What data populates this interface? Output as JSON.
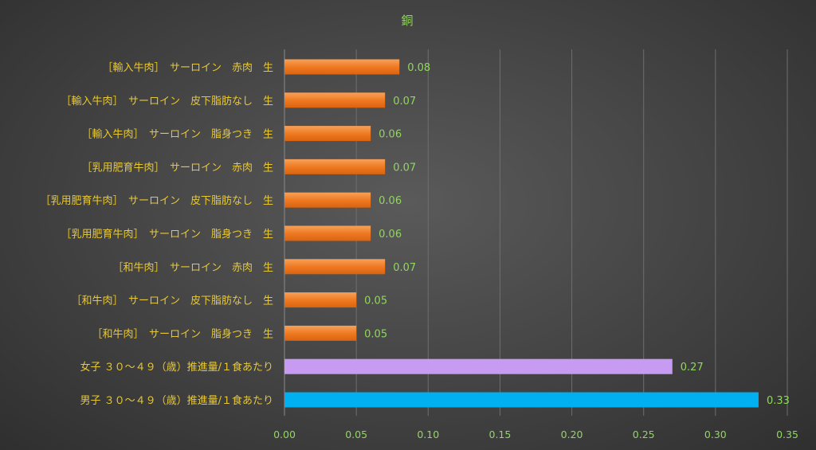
{
  "chart_data": {
    "type": "bar",
    "orientation": "horizontal",
    "title": "銅",
    "categories": [
      "［輸入牛肉］　サーロイン　赤肉　生",
      "［輸入牛肉］　サーロイン　皮下脂肪なし　生",
      "［輸入牛肉］　サーロイン　脂身つき　生",
      "［乳用肥育牛肉］　サーロイン　赤肉　生",
      "［乳用肥育牛肉］　サーロイン　皮下脂肪なし　生",
      "［乳用肥育牛肉］　サーロイン　脂身つき　生",
      "［和牛肉］　サーロイン　赤肉　生",
      "［和牛肉］　サーロイン　皮下脂肪なし　生",
      "［和牛肉］　サーロイン　脂身つき　生",
      "女子 ３０～４９（歳）推進量/１食あたり",
      "男子 ３０～４９（歳）推進量/１食あたり"
    ],
    "values": [
      0.08,
      0.07,
      0.06,
      0.07,
      0.06,
      0.06,
      0.07,
      0.05,
      0.05,
      0.27,
      0.33
    ],
    "value_labels": [
      "0.08",
      "0.07",
      "0.06",
      "0.07",
      "0.06",
      "0.06",
      "0.07",
      "0.05",
      "0.05",
      "0.27",
      "0.33"
    ],
    "bar_colors": [
      "#f07a24",
      "#f07a24",
      "#f07a24",
      "#f07a24",
      "#f07a24",
      "#f07a24",
      "#f07a24",
      "#f07a24",
      "#f07a24",
      "#c79bf2",
      "#00b0f0"
    ],
    "xlim": [
      0,
      0.35
    ],
    "xticks": [
      0,
      0.05,
      0.1,
      0.15,
      0.2,
      0.25,
      0.3,
      0.35
    ],
    "xtick_labels": [
      "0.00",
      "0.05",
      "0.10",
      "0.15",
      "0.20",
      "0.25",
      "0.30",
      "0.35"
    ],
    "xlabel": "",
    "ylabel": "",
    "grid": "vertical",
    "legend": "none"
  },
  "colors": {
    "category_text": "#e8c832",
    "value_text": "#8fd85a",
    "background": "#474747"
  }
}
